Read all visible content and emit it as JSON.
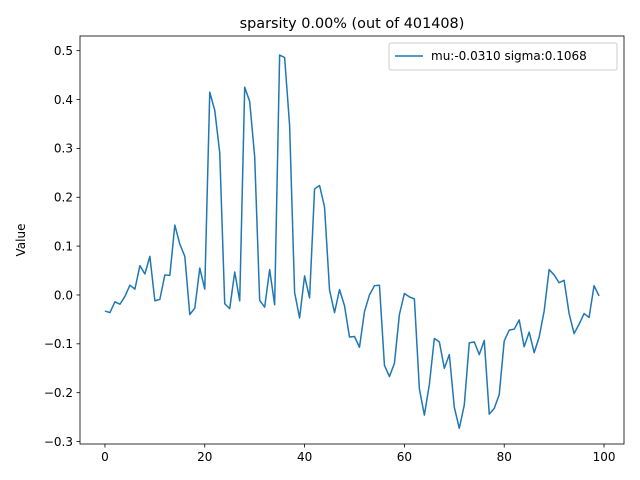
{
  "chart_data": {
    "type": "line",
    "title": "sparsity 0.00% (out of 401408)",
    "xlabel": "",
    "ylabel": "Value",
    "xlim": [
      -5,
      104
    ],
    "ylim": [
      -0.305,
      0.53
    ],
    "xticks": [
      0,
      20,
      40,
      60,
      80,
      100
    ],
    "yticks": [
      -0.3,
      -0.2,
      -0.1,
      0.0,
      0.1,
      0.2,
      0.3,
      0.4,
      0.5
    ],
    "xtick_labels": [
      "0",
      "20",
      "40",
      "60",
      "80",
      "100"
    ],
    "ytick_labels": [
      "−0.3",
      "−0.2",
      "−0.1",
      "0.0",
      "0.1",
      "0.2",
      "0.3",
      "0.4",
      "0.5"
    ],
    "grid": false,
    "legend_position": "top-right",
    "series": [
      {
        "name": "mu:-0.0310 sigma:0.1068",
        "color": "#1f77b4",
        "x": [
          0,
          1,
          2,
          3,
          4,
          5,
          6,
          7,
          8,
          9,
          10,
          11,
          12,
          13,
          14,
          15,
          16,
          17,
          18,
          19,
          20,
          21,
          22,
          23,
          24,
          25,
          26,
          27,
          28,
          29,
          30,
          31,
          32,
          33,
          34,
          35,
          36,
          37,
          38,
          39,
          40,
          41,
          42,
          43,
          44,
          45,
          46,
          47,
          48,
          49,
          50,
          51,
          52,
          53,
          54,
          55,
          56,
          57,
          58,
          59,
          60,
          61,
          62,
          63,
          64,
          65,
          66,
          67,
          68,
          69,
          70,
          71,
          72,
          73,
          74,
          75,
          76,
          77,
          78,
          79,
          80,
          81,
          82,
          83,
          84,
          85,
          86,
          87,
          88,
          89,
          90,
          91,
          92,
          93,
          94,
          95,
          96,
          97,
          98,
          99
        ],
        "values": [
          -0.033,
          -0.036,
          -0.014,
          -0.019,
          -0.003,
          0.02,
          0.012,
          0.06,
          0.043,
          0.079,
          -0.012,
          -0.009,
          0.041,
          0.04,
          0.143,
          0.104,
          0.079,
          -0.04,
          -0.027,
          0.055,
          0.012,
          0.415,
          0.378,
          0.291,
          -0.018,
          -0.028,
          0.047,
          -0.012,
          0.425,
          0.396,
          0.283,
          -0.011,
          -0.025,
          0.052,
          -0.02,
          0.491,
          0.486,
          0.347,
          0.005,
          -0.047,
          0.039,
          -0.006,
          0.217,
          0.224,
          0.18,
          0.01,
          -0.036,
          0.011,
          -0.022,
          -0.086,
          -0.085,
          -0.107,
          -0.034,
          0.0,
          0.019,
          0.02,
          -0.144,
          -0.167,
          -0.14,
          -0.04,
          0.003,
          -0.004,
          -0.008,
          -0.192,
          -0.246,
          -0.183,
          -0.089,
          -0.096,
          -0.15,
          -0.122,
          -0.23,
          -0.273,
          -0.225,
          -0.098,
          -0.096,
          -0.122,
          -0.093,
          -0.244,
          -0.232,
          -0.204,
          -0.094,
          -0.072,
          -0.07,
          -0.051,
          -0.106,
          -0.076,
          -0.118,
          -0.086,
          -0.033,
          0.052,
          0.041,
          0.025,
          0.03,
          -0.038,
          -0.079,
          -0.06,
          -0.038,
          -0.046,
          0.019,
          -0.002
        ]
      }
    ]
  }
}
